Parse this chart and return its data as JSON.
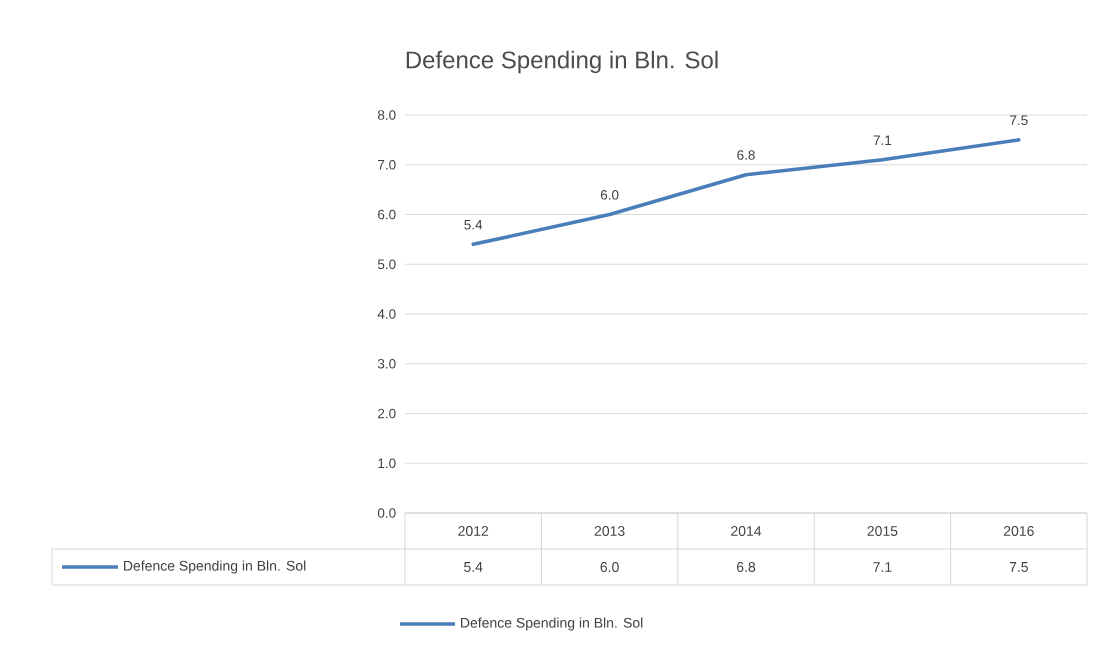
{
  "chart_data": {
    "type": "line",
    "title": "Defence Spending in Bln. Sol",
    "categories": [
      "2012",
      "2013",
      "2014",
      "2015",
      "2016"
    ],
    "series": [
      {
        "name": "Defence Spending in Bln. Sol",
        "color": "#4a7ebb",
        "values": [
          5.4,
          6.0,
          6.8,
          7.1,
          7.5
        ],
        "value_labels": [
          "5.4",
          "6.0",
          "6.8",
          "7.1",
          "7.5"
        ]
      }
    ],
    "ylim": [
      0,
      8
    ],
    "yticks": [
      {
        "value": 0,
        "label": "0.0"
      },
      {
        "value": 1,
        "label": "1.0"
      },
      {
        "value": 2,
        "label": "2.0"
      },
      {
        "value": 3,
        "label": "3.0"
      },
      {
        "value": 4,
        "label": "4.0"
      },
      {
        "value": 5,
        "label": "5.0"
      },
      {
        "value": 6,
        "label": "6.0"
      },
      {
        "value": 7,
        "label": "7.0"
      },
      {
        "value": 8,
        "label": "8.0"
      }
    ],
    "grid": "y",
    "legend": "bottom",
    "marker": "none",
    "line_style": "solid"
  }
}
